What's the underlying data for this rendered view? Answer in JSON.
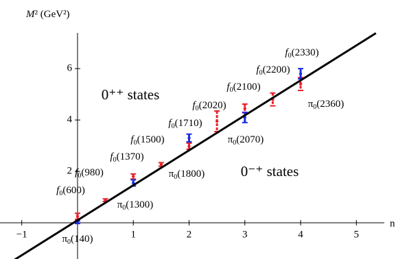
{
  "chart_data": {
    "type": "scatter",
    "x_label": "n",
    "y_label": "M² (GeV²)",
    "xlim": [
      -1.39,
      5.71
    ],
    "ylim": [
      -1.41,
      8.67
    ],
    "xticks": [
      {
        "value": -1,
        "label": "−1"
      },
      1,
      2,
      3,
      4,
      5
    ],
    "yticks": [
      2,
      4,
      6
    ],
    "series": [
      {
        "color": "#e8202a",
        "x": [
          0,
          0.5,
          1,
          1.5,
          2,
          2.5,
          3,
          3.5,
          4
        ],
        "values": [
          0.25,
          0.88,
          1.8,
          2.27,
          2.98,
          3.95,
          4.45,
          4.8,
          5.4
        ],
        "errors": [
          0.12,
          0.05,
          0.1,
          0.07,
          0.12,
          0.4,
          0.17,
          0.25,
          0.25
        ]
      },
      {
        "color": "#1a2fe0",
        "x": [
          0,
          1,
          2,
          3,
          4
        ],
        "values": [
          0.02,
          1.55,
          3.3,
          4.1,
          5.8
        ],
        "errors": [
          0.05,
          0.12,
          0.15,
          0.2,
          0.2
        ]
      },
      {
        "type": "line",
        "color": "#000000",
        "x": [
          -1.35,
          5.35
        ],
        "values": [
          -1.74,
          7.38
        ]
      }
    ],
    "annotations": [
      "f0(2330)",
      "f0(2200)",
      "f0(2100)",
      "f0(2020)",
      "f0(1710)",
      "f0(1500)",
      "f0(1370)",
      "f0(980)",
      "f0(600)",
      "π0(2360)",
      "π0(2070)",
      "π0(1800)",
      "π0(1300)",
      "π0(140)",
      "0⁺⁺ states",
      "0⁻⁺ states"
    ]
  }
}
